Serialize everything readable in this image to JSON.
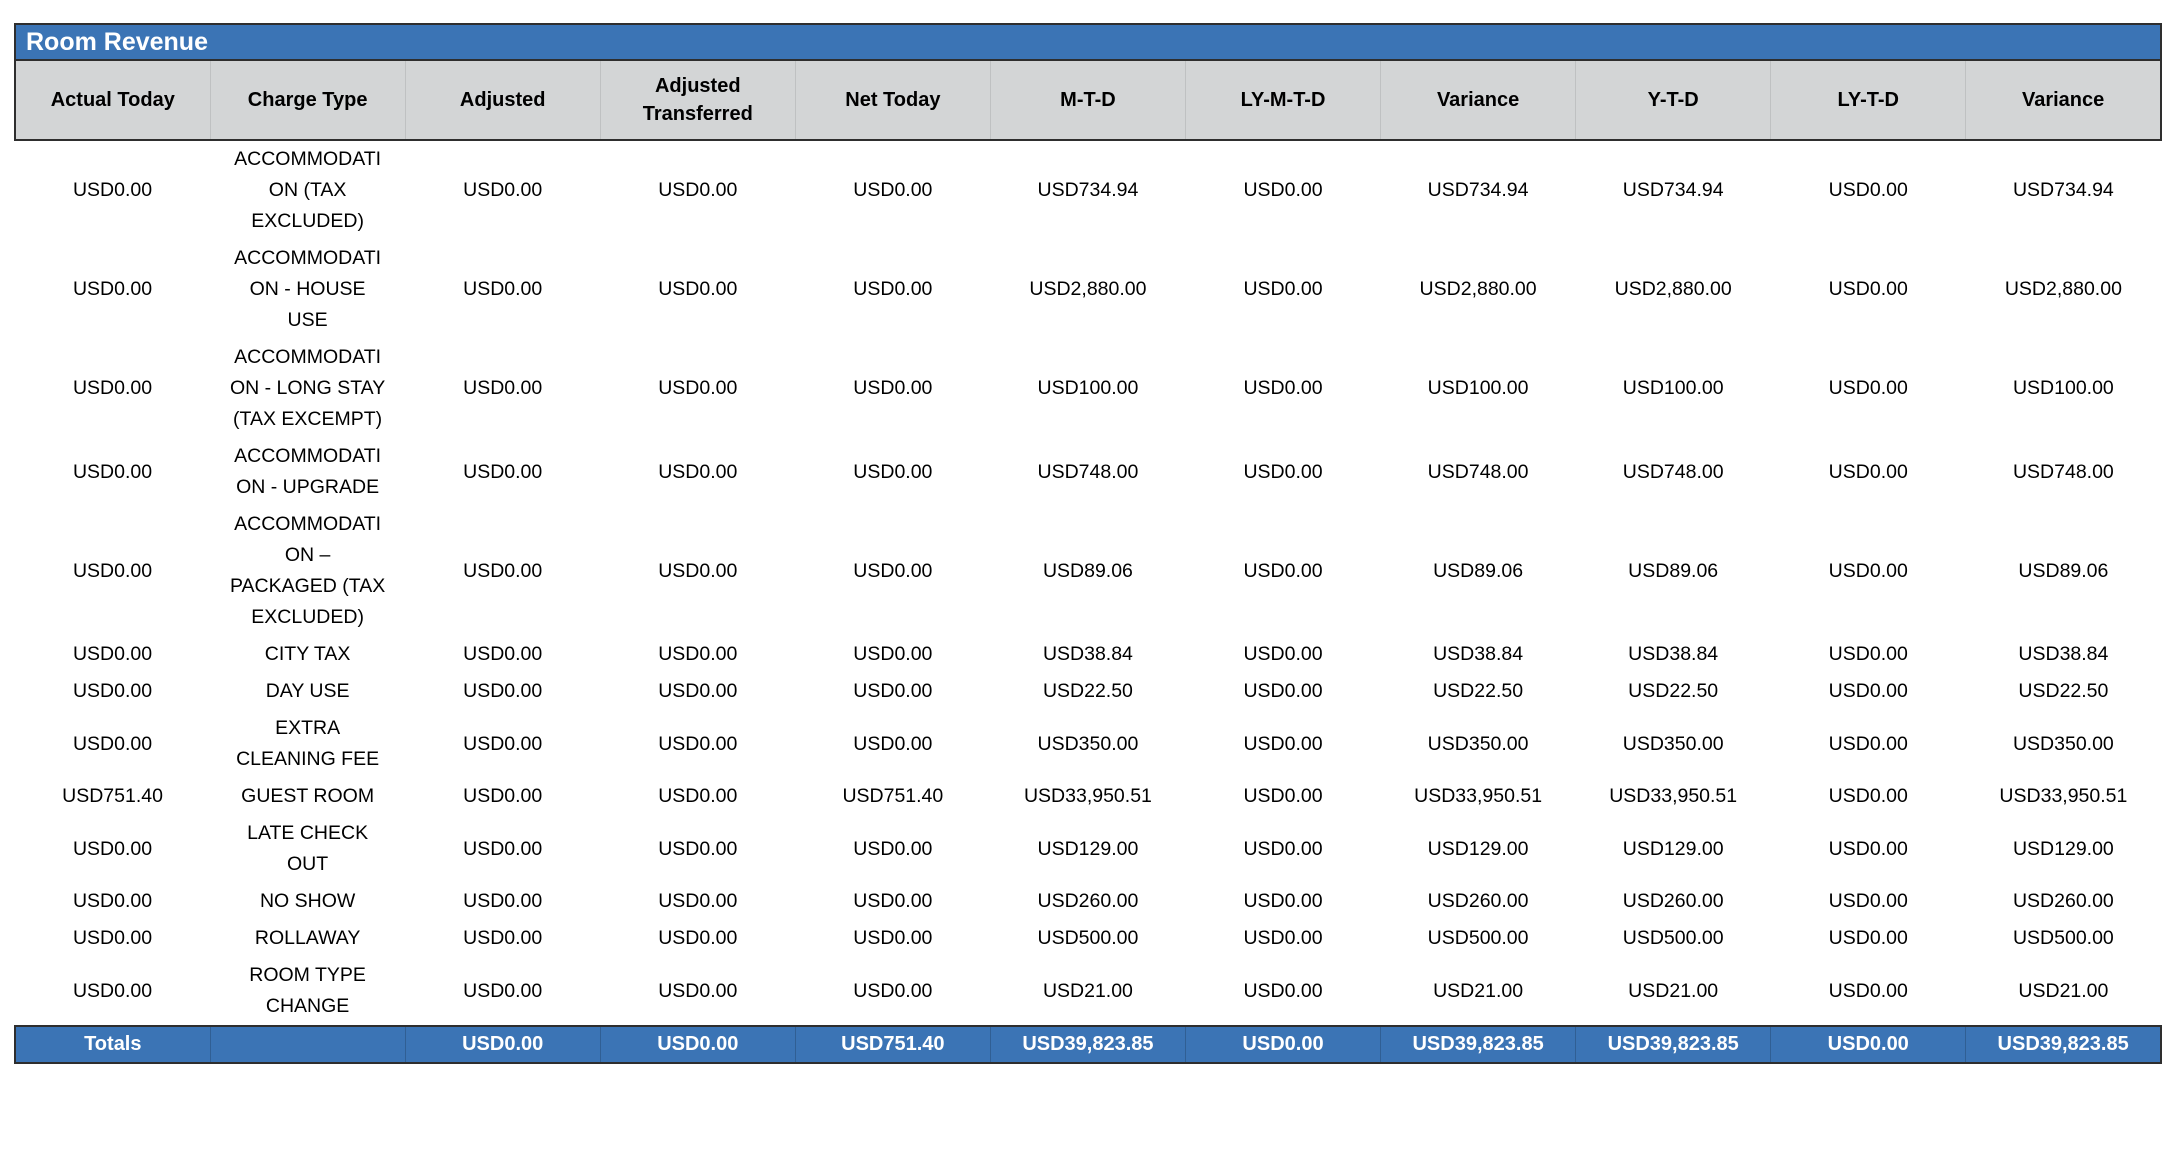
{
  "report": {
    "title": "Room Revenue",
    "columns": [
      "Actual Today",
      "Charge Type",
      "Adjusted",
      "Adjusted Transferred",
      "Net Today",
      "M-T-D",
      "LY-M-T-D",
      "Variance",
      "Y-T-D",
      "LY-T-D",
      "Variance"
    ],
    "field_order": [
      "actual_today",
      "charge_type",
      "adjusted",
      "adjusted_transferred",
      "net_today",
      "mtd",
      "ly_mtd",
      "variance_mtd",
      "ytd",
      "ly_td",
      "variance_ytd"
    ],
    "rows": [
      {
        "actual_today": "USD0.00",
        "charge_type": "ACCOMMODATION (TAX EXCLUDED)",
        "adjusted": "USD0.00",
        "adjusted_transferred": "USD0.00",
        "net_today": "USD0.00",
        "mtd": "USD734.94",
        "ly_mtd": "USD0.00",
        "variance_mtd": "USD734.94",
        "ytd": "USD734.94",
        "ly_td": "USD0.00",
        "variance_ytd": "USD734.94"
      },
      {
        "actual_today": "USD0.00",
        "charge_type": "ACCOMMODATION - HOUSE USE",
        "adjusted": "USD0.00",
        "adjusted_transferred": "USD0.00",
        "net_today": "USD0.00",
        "mtd": "USD2,880.00",
        "ly_mtd": "USD0.00",
        "variance_mtd": "USD2,880.00",
        "ytd": "USD2,880.00",
        "ly_td": "USD0.00",
        "variance_ytd": "USD2,880.00"
      },
      {
        "actual_today": "USD0.00",
        "charge_type": "ACCOMMODATION - LONG STAY (TAX EXCEMPT)",
        "adjusted": "USD0.00",
        "adjusted_transferred": "USD0.00",
        "net_today": "USD0.00",
        "mtd": "USD100.00",
        "ly_mtd": "USD0.00",
        "variance_mtd": "USD100.00",
        "ytd": "USD100.00",
        "ly_td": "USD0.00",
        "variance_ytd": "USD100.00"
      },
      {
        "actual_today": "USD0.00",
        "charge_type": "ACCOMMODATION - UPGRADE",
        "adjusted": "USD0.00",
        "adjusted_transferred": "USD0.00",
        "net_today": "USD0.00",
        "mtd": "USD748.00",
        "ly_mtd": "USD0.00",
        "variance_mtd": "USD748.00",
        "ytd": "USD748.00",
        "ly_td": "USD0.00",
        "variance_ytd": "USD748.00"
      },
      {
        "actual_today": "USD0.00",
        "charge_type": "ACCOMMODATION – PACKAGED (TAX EXCLUDED)",
        "adjusted": "USD0.00",
        "adjusted_transferred": "USD0.00",
        "net_today": "USD0.00",
        "mtd": "USD89.06",
        "ly_mtd": "USD0.00",
        "variance_mtd": "USD89.06",
        "ytd": "USD89.06",
        "ly_td": "USD0.00",
        "variance_ytd": "USD89.06"
      },
      {
        "actual_today": "USD0.00",
        "charge_type": "CITY TAX",
        "adjusted": "USD0.00",
        "adjusted_transferred": "USD0.00",
        "net_today": "USD0.00",
        "mtd": "USD38.84",
        "ly_mtd": "USD0.00",
        "variance_mtd": "USD38.84",
        "ytd": "USD38.84",
        "ly_td": "USD0.00",
        "variance_ytd": "USD38.84"
      },
      {
        "actual_today": "USD0.00",
        "charge_type": "DAY USE",
        "adjusted": "USD0.00",
        "adjusted_transferred": "USD0.00",
        "net_today": "USD0.00",
        "mtd": "USD22.50",
        "ly_mtd": "USD0.00",
        "variance_mtd": "USD22.50",
        "ytd": "USD22.50",
        "ly_td": "USD0.00",
        "variance_ytd": "USD22.50"
      },
      {
        "actual_today": "USD0.00",
        "charge_type": "EXTRA CLEANING FEE",
        "adjusted": "USD0.00",
        "adjusted_transferred": "USD0.00",
        "net_today": "USD0.00",
        "mtd": "USD350.00",
        "ly_mtd": "USD0.00",
        "variance_mtd": "USD350.00",
        "ytd": "USD350.00",
        "ly_td": "USD0.00",
        "variance_ytd": "USD350.00"
      },
      {
        "actual_today": "USD751.40",
        "charge_type": "GUEST ROOM",
        "adjusted": "USD0.00",
        "adjusted_transferred": "USD0.00",
        "net_today": "USD751.40",
        "mtd": "USD33,950.51",
        "ly_mtd": "USD0.00",
        "variance_mtd": "USD33,950.51",
        "ytd": "USD33,950.51",
        "ly_td": "USD0.00",
        "variance_ytd": "USD33,950.51"
      },
      {
        "actual_today": "USD0.00",
        "charge_type": "LATE CHECK OUT",
        "adjusted": "USD0.00",
        "adjusted_transferred": "USD0.00",
        "net_today": "USD0.00",
        "mtd": "USD129.00",
        "ly_mtd": "USD0.00",
        "variance_mtd": "USD129.00",
        "ytd": "USD129.00",
        "ly_td": "USD0.00",
        "variance_ytd": "USD129.00"
      },
      {
        "actual_today": "USD0.00",
        "charge_type": "NO SHOW",
        "adjusted": "USD0.00",
        "adjusted_transferred": "USD0.00",
        "net_today": "USD0.00",
        "mtd": "USD260.00",
        "ly_mtd": "USD0.00",
        "variance_mtd": "USD260.00",
        "ytd": "USD260.00",
        "ly_td": "USD0.00",
        "variance_ytd": "USD260.00"
      },
      {
        "actual_today": "USD0.00",
        "charge_type": "ROLLAWAY",
        "adjusted": "USD0.00",
        "adjusted_transferred": "USD0.00",
        "net_today": "USD0.00",
        "mtd": "USD500.00",
        "ly_mtd": "USD0.00",
        "variance_mtd": "USD500.00",
        "ytd": "USD500.00",
        "ly_td": "USD0.00",
        "variance_ytd": "USD500.00"
      },
      {
        "actual_today": "USD0.00",
        "charge_type": "ROOM TYPE CHANGE",
        "adjusted": "USD0.00",
        "adjusted_transferred": "USD0.00",
        "net_today": "USD0.00",
        "mtd": "USD21.00",
        "ly_mtd": "USD0.00",
        "variance_mtd": "USD21.00",
        "ytd": "USD21.00",
        "ly_td": "USD0.00",
        "variance_ytd": "USD21.00"
      }
    ],
    "totals": {
      "label": "Totals",
      "charge_type": "",
      "adjusted": "USD0.00",
      "adjusted_transferred": "USD0.00",
      "net_today": "USD751.40",
      "mtd": "USD39,823.85",
      "ly_mtd": "USD0.00",
      "variance_mtd": "USD39,823.85",
      "ytd": "USD39,823.85",
      "ly_td": "USD0.00",
      "variance_ytd": "USD39,823.85"
    }
  },
  "colors": {
    "header_blue": "#3b74b5",
    "header_gray": "#d3d5d6",
    "border_dark": "#2e2e2e",
    "title_text": "#ffffff"
  }
}
